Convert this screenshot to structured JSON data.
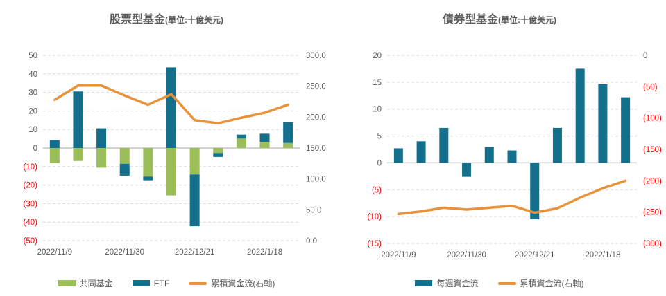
{
  "colors": {
    "mutual_fund_green": "#9bbd5a",
    "etf_teal": "#136f8c",
    "cumulative_orange": "#e8923a",
    "axis_text_gray": "#595959",
    "negative_red": "#e80000",
    "gridline_gray": "#d9d9d9",
    "zero_line_gray": "#c3c3c3",
    "title_gray": "#595959",
    "background": "#ffffff"
  },
  "chart_data": [
    {
      "id": "equity-fund-chart",
      "type": "bar",
      "subtype": "stacked-bar-with-line",
      "title": "股票型基金",
      "title_unit": "(單位:十億美元)",
      "n_slots": 11,
      "x_labels": [
        "2022/11/9",
        "2022/11/30",
        "2022/12/21",
        "2022/1/18"
      ],
      "x_label_slots": [
        0,
        3,
        6,
        9
      ],
      "left_axis": {
        "min": -50,
        "max": 50,
        "ticks": [
          "50",
          "40",
          "30",
          "20",
          "10",
          "0",
          "(10)",
          "(20)",
          "(30)",
          "(40)",
          "(50)"
        ]
      },
      "right_axis": {
        "min": 0,
        "max": 300,
        "ticks": [
          "300.0",
          "250.0",
          "200.0",
          "150.0",
          "100.0",
          "50.0",
          "0.0"
        ]
      },
      "series": [
        {
          "name": "共同基金",
          "kind": "bar",
          "axis": "left",
          "color_key": "mutual_fund_green",
          "values": [
            -8.2,
            -7.0,
            -10.6,
            -8.5,
            -15.4,
            -25.6,
            -14.3,
            -2.7,
            5.1,
            3.3,
            2.7
          ]
        },
        {
          "name": "ETF",
          "kind": "bar",
          "axis": "left",
          "color_key": "etf_teal",
          "values": [
            4.2,
            30.5,
            10.6,
            -6.4,
            -2.0,
            43.5,
            -27.9,
            -2.1,
            2.1,
            4.4,
            11.2
          ]
        },
        {
          "name": "累積資金流(右軸)",
          "kind": "line",
          "axis": "right",
          "color_key": "cumulative_orange",
          "values": [
            228,
            251,
            251,
            235,
            220,
            237,
            195,
            190,
            199,
            207,
            220
          ]
        }
      ],
      "legend": [
        {
          "label": "共同基金",
          "swatch": "bar",
          "color_key": "mutual_fund_green"
        },
        {
          "label": "ETF",
          "swatch": "bar",
          "color_key": "etf_teal"
        },
        {
          "label": "累積資金流(右軸)",
          "swatch": "line",
          "color_key": "cumulative_orange"
        }
      ]
    },
    {
      "id": "bond-fund-chart",
      "type": "bar",
      "subtype": "bar-with-line",
      "title": "債券型基金",
      "title_unit": "(單位:十億美元)",
      "n_slots": 11,
      "x_labels": [
        "2022/11/9",
        "2022/11/30",
        "2022/12/21",
        "2022/1/18"
      ],
      "x_label_slots": [
        0,
        3,
        6,
        9
      ],
      "left_axis": {
        "min": -15,
        "max": 20,
        "ticks": [
          "20",
          "15",
          "10",
          "5",
          "0",
          "(5)",
          "(10)",
          "(15)"
        ]
      },
      "right_axis": {
        "min": -300,
        "max": 0,
        "ticks": [
          "0",
          "(50)",
          "(100)",
          "(150)",
          "(200)",
          "(250)",
          "(300)"
        ]
      },
      "series": [
        {
          "name": "每週資金流",
          "kind": "bar",
          "axis": "left",
          "color_key": "etf_teal",
          "values": [
            2.7,
            4.0,
            6.5,
            -2.6,
            2.9,
            2.3,
            -10.5,
            6.5,
            17.5,
            14.6,
            12.2
          ]
        },
        {
          "name": "累積資金流(右軸)",
          "kind": "line",
          "axis": "right",
          "color_key": "cumulative_orange",
          "values": [
            -253,
            -249,
            -243,
            -246,
            -243,
            -240,
            -251,
            -244,
            -227,
            -212,
            -200
          ]
        }
      ],
      "legend": [
        {
          "label": "每週資金流",
          "swatch": "bar",
          "color_key": "etf_teal"
        },
        {
          "label": "累積資金流(右軸)",
          "swatch": "line",
          "color_key": "cumulative_orange"
        }
      ]
    }
  ]
}
